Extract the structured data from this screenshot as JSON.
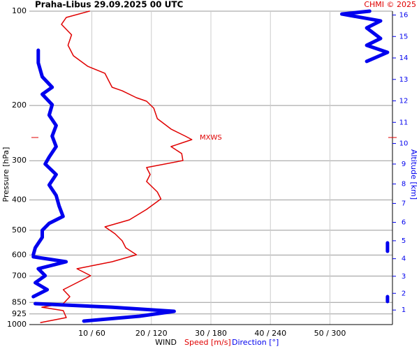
{
  "chart_data": {
    "type": "line",
    "title": "Praha-Libus   29.09.2025 00 UTC",
    "credit": "CHMI © 2025",
    "ylabel": "Pressure [hPa]",
    "y2label": "Altitude [km]",
    "xlabel_parts": [
      "WIND",
      "Speed [m/s]",
      "Direction [°]"
    ],
    "log_y": true,
    "grid": true,
    "ylim": [
      100,
      1000
    ],
    "yticks": [
      100,
      200,
      300,
      400,
      500,
      600,
      700,
      850,
      925,
      1000
    ],
    "xlim": [
      -0.5,
      60.5
    ],
    "xticks": [
      {
        "value": 10,
        "label": "10 / 60"
      },
      {
        "value": 20,
        "label": "20 / 120"
      },
      {
        "value": 30,
        "label": "30 / 180"
      },
      {
        "value": 40,
        "label": "40 / 240"
      },
      {
        "value": 50,
        "label": "50 / 300"
      }
    ],
    "x2lim": [
      -3,
      363
    ],
    "altitude_ticks": [
      1,
      2,
      3,
      4,
      5,
      6,
      7,
      8,
      9,
      10,
      11,
      12,
      13,
      14,
      15,
      16
    ],
    "max_wind": {
      "label": "MXWS",
      "pressure": 253
    },
    "series": [
      {
        "name": "Speed [m/s]",
        "color": "#e00000",
        "pressure": [
          100,
          104.7,
          110.2,
          119,
          128.5,
          138.8,
          149.9,
          157.9,
          166.2,
          174.9,
          179.5,
          188.9,
          193.8,
          204,
          220.3,
          237.8,
          250.4,
          256.9,
          270.4,
          284.6,
          299.6,
          315.4,
          332,
          349.5,
          377.4,
          397.2,
          429,
          463.4,
          487.8,
          513.4,
          540.4,
          568.9,
          598.8,
          630.3,
          663.5,
          698.4,
          735.2,
          773.9,
          814.6,
          857.4,
          879.9,
          902.6,
          950,
          985
        ],
        "values": [
          9.6,
          5.7,
          4.9,
          6.6,
          6.0,
          6.9,
          9.3,
          12.2,
          12.8,
          13.4,
          15.1,
          17.5,
          19.2,
          20.4,
          21.0,
          23.3,
          25.7,
          26.8,
          23.3,
          25.1,
          25.3,
          19.2,
          19.8,
          19.2,
          21.0,
          21.6,
          19.2,
          16.3,
          12.2,
          13.9,
          15.1,
          15.7,
          17.5,
          13.4,
          7.5,
          9.8,
          7.5,
          5.2,
          6.3,
          5.2,
          1.6,
          5.2,
          5.7,
          1.4
        ]
      },
      {
        "name": "Direction [°]",
        "color": "#0000ee",
        "axis": "x2",
        "pressure": [
          100,
          102.1,
          107.4,
          113.1,
          122.2,
          128.5,
          135.3,
          144.6,
          null,
          133.3,
          146.2,
          161.9,
          174.9,
          184.1,
          198.8,
          214.7,
          231.8,
          250.4,
          270.4,
          292.1,
          307.4,
          332,
          358.5,
          387.2,
          418.1,
          451.6,
          475.4,
          500.4,
          526.8,
          568.9,
          598.8,
          null,
          548.9,
          583.5,
          null,
          607.8,
          630.3,
          663.5,
          698.4,
          735.2,
          773.9,
          814.6,
          null,
          814.6,
          844.4,
          null,
          857.4,
          879.9,
          907.2,
          940.4,
          974.7
        ],
        "values": [
          340,
          312,
          351,
          337,
          351,
          337,
          358,
          337,
          null,
          6,
          6,
          10,
          20,
          10,
          20,
          17,
          24,
          20,
          24,
          17,
          13,
          24,
          17,
          24,
          27,
          31,
          17,
          10,
          10,
          3,
          1,
          null,
          358,
          358,
          null,
          1,
          34,
          6,
          13,
          3,
          15,
          1,
          null,
          358,
          358,
          null,
          3,
          80,
          143,
          108,
          52
        ]
      }
    ]
  }
}
